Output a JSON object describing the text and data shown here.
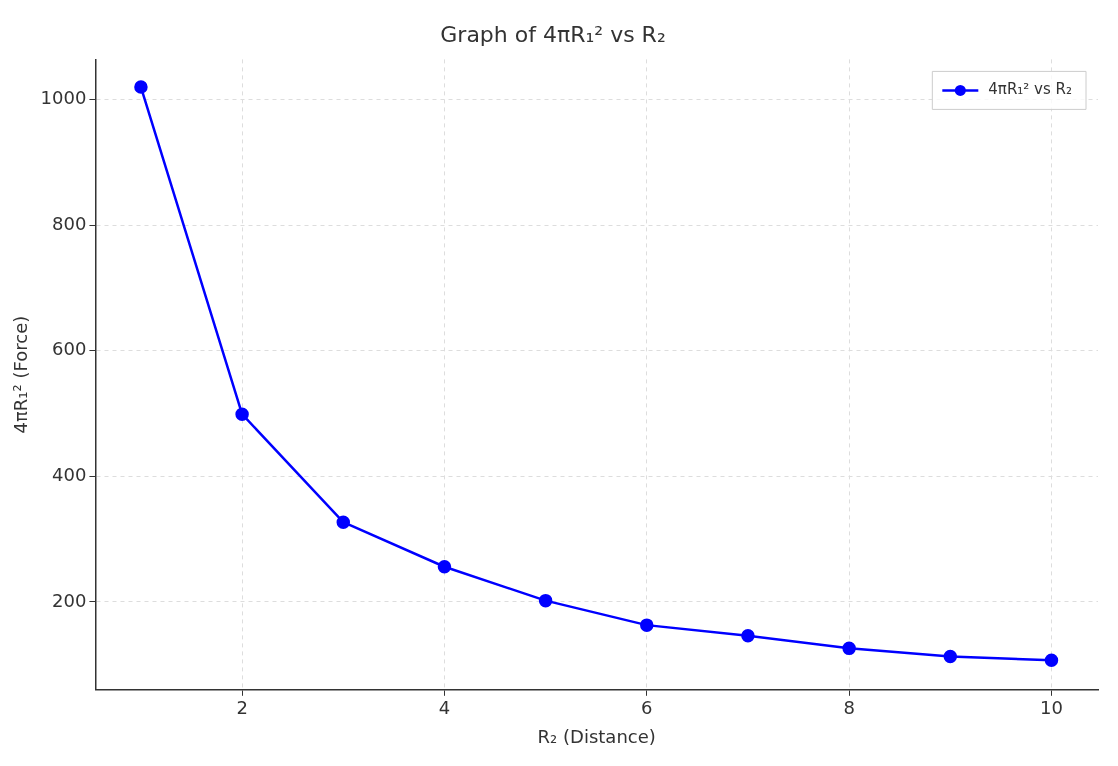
{
  "chart_data": {
    "type": "line",
    "title": "Graph of 4πR₁² vs R₂",
    "xlabel": "R₂ (Distance)",
    "ylabel": "4πR₁² (Force)",
    "x": [
      1,
      2,
      3,
      4,
      5,
      6,
      7,
      8,
      9,
      10
    ],
    "series": [
      {
        "name": "4πR₁² vs R₂",
        "color": "#0000ff",
        "values": [
          1020,
          499,
          327,
          256,
          202,
          163,
          146,
          126,
          113,
          107
        ]
      }
    ],
    "xlim": [
      0.55,
      10.46
    ],
    "xticks": [
      2,
      4,
      6,
      8,
      10
    ],
    "ylim": [
      60,
      1064
    ],
    "yticks": [
      200,
      400,
      600,
      800,
      1000
    ],
    "grid": true,
    "legend": "top right",
    "marker": "circle",
    "line_style": "solid"
  }
}
